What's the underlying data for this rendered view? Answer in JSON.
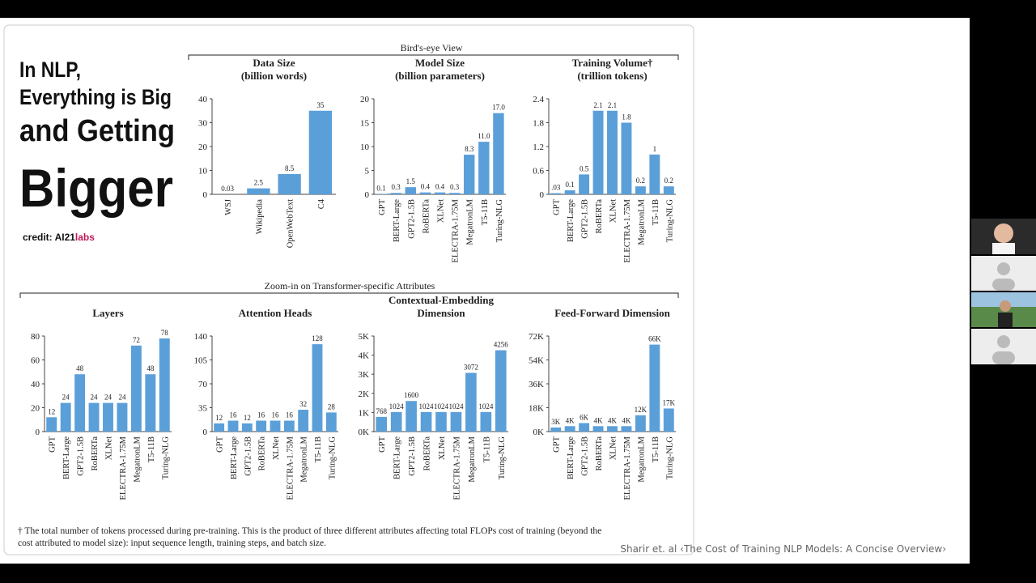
{
  "slide": {
    "heading": [
      "In NLP,",
      "Everything is Big",
      "and Getting",
      "Bigger"
    ],
    "credit": {
      "prefix": "credit: AI21",
      "suffix": "labs"
    },
    "sections": [
      "Bird's-eye View",
      "Zoom-in on Transformer-specific Attributes"
    ],
    "footnote": [
      "† The total number of tokens processed during pre-training. This is the product of three different attributes affecting total FLOPs cost of training (beyond the",
      "cost attributed to model size): input sequence length, training steps, and batch size."
    ]
  },
  "caption": "Sharir et. al ‹The Cost of Training NLP Models: A Concise Overview›",
  "chart_data": [
    {
      "type": "bar",
      "title": [
        "Data Size",
        "(billion words)"
      ],
      "color": "#5b9fd9",
      "categories": [
        "WSJ",
        "Wikipedia",
        "OpenWebText",
        "C4"
      ],
      "values": [
        0.03,
        2.5,
        8.5,
        35
      ],
      "ylim": [
        0,
        40
      ],
      "yticks": [
        0,
        10,
        20,
        30,
        40
      ]
    },
    {
      "type": "bar",
      "title": [
        "Model Size",
        "(billion parameters)"
      ],
      "color": "#5b9fd9",
      "categories": [
        "GPT",
        "BERT-Large",
        "GPT2-1.5B",
        "RoBERTa",
        "XLNet",
        "ELECTRA-1.75M",
        "MegatronLM",
        "T5-11B",
        "Turing-NLG"
      ],
      "values": [
        0.1,
        0.3,
        1.5,
        0.4,
        0.4,
        0.3,
        8.3,
        11,
        17
      ],
      "value_labels": [
        "0.1",
        "0.3",
        "1.5",
        "0.4",
        "0.4",
        "0.3",
        "8.3",
        "11.0",
        "17.0"
      ],
      "ylim": [
        0,
        20
      ],
      "yticks": [
        0,
        5,
        10,
        15,
        20
      ]
    },
    {
      "type": "bar",
      "title": [
        "Training Volume†",
        "(trillion tokens)"
      ],
      "color": "#5b9fd9",
      "categories": [
        "GPT",
        "BERT-Large",
        "GPT2-1.5B",
        "RoBERTa",
        "XLNet",
        "ELECTRA-1.75M",
        "MegatronLM",
        "T5-11B",
        "Turing-NLG"
      ],
      "values": [
        0.03,
        0.1,
        0.5,
        2.1,
        2.1,
        1.8,
        0.2,
        1,
        0.2
      ],
      "value_labels": [
        ".03",
        "0.1",
        "0.5",
        "2.1",
        "2.1",
        "1.8",
        "0.2",
        "1",
        "0.2"
      ],
      "ylim": [
        0,
        2.4
      ],
      "yticks": [
        0,
        0.6,
        1.2,
        1.8,
        2.4
      ]
    },
    {
      "type": "bar",
      "title": [
        "Layers"
      ],
      "color": "#5b9fd9",
      "categories": [
        "GPT",
        "BERT-Large",
        "GPT2-1.5B",
        "RoBERTa",
        "XLNet",
        "ELECTRA-1.75M",
        "MegatronLM",
        "T5-11B",
        "Turing-NLG"
      ],
      "values": [
        12,
        24,
        48,
        24,
        24,
        24,
        72,
        48,
        78
      ],
      "ylim": [
        0,
        80
      ],
      "yticks": [
        0,
        20,
        40,
        60,
        80
      ]
    },
    {
      "type": "bar",
      "title": [
        "Attention Heads"
      ],
      "color": "#5b9fd9",
      "categories": [
        "GPT",
        "BERT-Large",
        "GPT2-1.5B",
        "RoBERTa",
        "XLNet",
        "ELECTRA-1.75M",
        "MegatronLM",
        "T5-11B",
        "Turing-NLG"
      ],
      "values": [
        12,
        16,
        12,
        16,
        16,
        16,
        32,
        128,
        28
      ],
      "ylim": [
        0,
        140
      ],
      "yticks": [
        0,
        35,
        70,
        105,
        140
      ]
    },
    {
      "type": "bar",
      "title": [
        "Contextual-Embedding",
        "Dimension"
      ],
      "color": "#5b9fd9",
      "categories": [
        "GPT",
        "BERT-Large",
        "GPT2-1.5B",
        "RoBERTa",
        "XLNet",
        "ELECTRA-1.75M",
        "MegatronLM",
        "T5-11B",
        "Turing-NLG"
      ],
      "values": [
        768,
        1024,
        1600,
        1024,
        1024,
        1024,
        3072,
        1024,
        4256
      ],
      "ylim": [
        0,
        5000
      ],
      "yticks": [
        {
          "value": 0,
          "label": "0K"
        },
        {
          "value": 1000,
          "label": "1K"
        },
        {
          "value": 2000,
          "label": "2K"
        },
        {
          "value": 3000,
          "label": "3K"
        },
        {
          "value": 4000,
          "label": "4K"
        },
        {
          "value": 5000,
          "label": "5K"
        }
      ]
    },
    {
      "type": "bar",
      "title": [
        "Feed-Forward Dimension"
      ],
      "color": "#5b9fd9",
      "categories": [
        "GPT",
        "BERT-Large",
        "GPT2-1.5B",
        "RoBERTa",
        "XLNet",
        "ELECTRA-1.75M",
        "MegatronLM",
        "T5-11B",
        "Turing-NLG"
      ],
      "values": [
        3072,
        4096,
        6400,
        4096,
        4096,
        4096,
        12288,
        65536,
        17408
      ],
      "value_labels": [
        "3K",
        "4K",
        "6K",
        "4K",
        "4K",
        "4K",
        "12K",
        "66K",
        "17K"
      ],
      "ylim": [
        0,
        72000
      ],
      "yticks": [
        {
          "value": 0,
          "label": "0K"
        },
        {
          "value": 18000,
          "label": "18K"
        },
        {
          "value": 36000,
          "label": "36K"
        },
        {
          "value": 54000,
          "label": "54K"
        },
        {
          "value": 72000,
          "label": "72K"
        }
      ]
    }
  ]
}
